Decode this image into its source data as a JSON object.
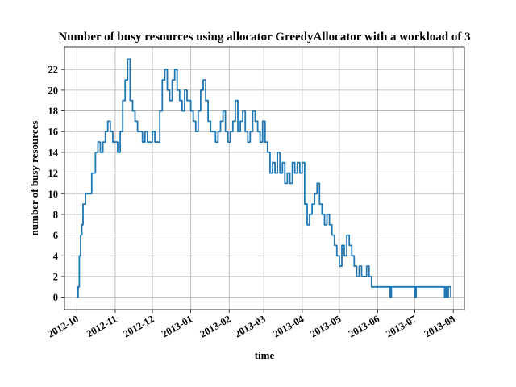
{
  "chart_data": {
    "type": "line",
    "title": "Number of busy resources using allocator GreedyAllocator with a workload of 3",
    "xlabel": "time",
    "ylabel": "number of busy resources",
    "grid": true,
    "line_color": "#1f77b4",
    "x_ticks": [
      "2012-10",
      "2012-11",
      "2012-12",
      "2013-01",
      "2013-02",
      "2013-03",
      "2013-04",
      "2013-05",
      "2013-06",
      "2013-07",
      "2013-08"
    ],
    "y_ticks": [
      0,
      2,
      4,
      6,
      8,
      10,
      12,
      14,
      16,
      18,
      20,
      22
    ],
    "xlim": [
      "2012-09-21",
      "2013-08-10"
    ],
    "ylim": [
      -1.2,
      24.2
    ],
    "series": [
      {
        "x": [
          "2012-10-01",
          "2012-10-02",
          "2012-10-03",
          "2012-10-04",
          "2012-10-05",
          "2012-10-06",
          "2012-10-08",
          "2012-10-10",
          "2012-10-13",
          "2012-10-16",
          "2012-10-18",
          "2012-10-20",
          "2012-10-22",
          "2012-10-24",
          "2012-10-26",
          "2012-10-28",
          "2012-10-30",
          "2012-11-01",
          "2012-11-03",
          "2012-11-05",
          "2012-11-07",
          "2012-11-09",
          "2012-11-11",
          "2012-11-13",
          "2012-11-15",
          "2012-11-17",
          "2012-11-19",
          "2012-11-21",
          "2012-11-23",
          "2012-11-25",
          "2012-11-27",
          "2012-11-29",
          "2012-12-01",
          "2012-12-03",
          "2012-12-05",
          "2012-12-07",
          "2012-12-09",
          "2012-12-11",
          "2012-12-13",
          "2012-12-15",
          "2012-12-17",
          "2012-12-19",
          "2012-12-21",
          "2012-12-23",
          "2012-12-25",
          "2012-12-27",
          "2012-12-29",
          "2013-01-01",
          "2013-01-03",
          "2013-01-05",
          "2013-01-07",
          "2013-01-09",
          "2013-01-11",
          "2013-01-13",
          "2013-01-15",
          "2013-01-17",
          "2013-01-19",
          "2013-01-21",
          "2013-01-23",
          "2013-01-25",
          "2013-01-27",
          "2013-01-29",
          "2013-01-31",
          "2013-02-02",
          "2013-02-04",
          "2013-02-06",
          "2013-02-08",
          "2013-02-10",
          "2013-02-12",
          "2013-02-14",
          "2013-02-16",
          "2013-02-18",
          "2013-02-20",
          "2013-02-22",
          "2013-02-24",
          "2013-02-26",
          "2013-02-28",
          "2013-03-02",
          "2013-03-04",
          "2013-03-06",
          "2013-03-08",
          "2013-03-10",
          "2013-03-12",
          "2013-03-14",
          "2013-03-16",
          "2013-03-18",
          "2013-03-20",
          "2013-03-22",
          "2013-03-24",
          "2013-03-26",
          "2013-03-28",
          "2013-03-30",
          "2013-04-01",
          "2013-04-03",
          "2013-04-05",
          "2013-04-07",
          "2013-04-09",
          "2013-04-11",
          "2013-04-13",
          "2013-04-15",
          "2013-04-17",
          "2013-04-19",
          "2013-04-21",
          "2013-04-23",
          "2013-04-25",
          "2013-04-27",
          "2013-04-29",
          "2013-05-01",
          "2013-05-03",
          "2013-05-05",
          "2013-05-07",
          "2013-05-09",
          "2013-05-11",
          "2013-05-13",
          "2013-05-15",
          "2013-05-17",
          "2013-05-19",
          "2013-05-21",
          "2013-05-23",
          "2013-05-25",
          "2013-05-27",
          "2013-06-10",
          "2013-06-11",
          "2013-06-12",
          "2013-06-30",
          "2013-07-01",
          "2013-07-02",
          "2013-07-24",
          "2013-07-25",
          "2013-07-26",
          "2013-07-27",
          "2013-07-28",
          "2013-07-29",
          "2013-07-30"
        ],
        "y": [
          0,
          1,
          4,
          6,
          7,
          9,
          10,
          10,
          12,
          14,
          15,
          14,
          15,
          16,
          17,
          16,
          15,
          15,
          14,
          16,
          19,
          21,
          23,
          19,
          18,
          17,
          16,
          16,
          15,
          16,
          15,
          15,
          16,
          15,
          15,
          18,
          21,
          22,
          20,
          19,
          21,
          22,
          20,
          19,
          18,
          20,
          19,
          18,
          17,
          16,
          18,
          20,
          21,
          19,
          17,
          16,
          16,
          15,
          16,
          17,
          18,
          16,
          15,
          16,
          17,
          19,
          16,
          17,
          18,
          16,
          15,
          16,
          18,
          17,
          16,
          15,
          17,
          15,
          14,
          12,
          13,
          12,
          14,
          12,
          13,
          11,
          12,
          11,
          13,
          12,
          13,
          12,
          13,
          9,
          7,
          8,
          9,
          10,
          11,
          9,
          8,
          7,
          8,
          7,
          6,
          5,
          4,
          3,
          5,
          4,
          6,
          5,
          4,
          3,
          2,
          3,
          2,
          2,
          3,
          2,
          1,
          1,
          0,
          1,
          1,
          0,
          1,
          1,
          0,
          1,
          0,
          1,
          1,
          0
        ]
      }
    ]
  }
}
